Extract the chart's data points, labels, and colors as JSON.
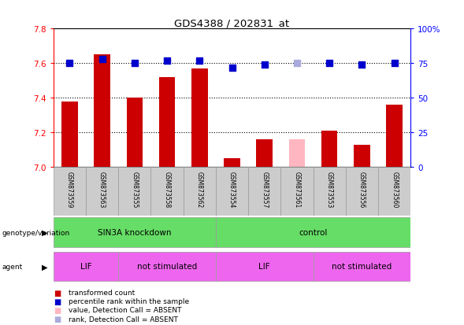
{
  "title": "GDS4388 / 202831_at",
  "samples": [
    "GSM873559",
    "GSM873563",
    "GSM873555",
    "GSM873558",
    "GSM873562",
    "GSM873554",
    "GSM873557",
    "GSM873561",
    "GSM873553",
    "GSM873556",
    "GSM873560"
  ],
  "red_values": [
    7.38,
    7.65,
    7.4,
    7.52,
    7.57,
    7.05,
    7.16,
    7.16,
    7.21,
    7.13,
    7.36
  ],
  "blue_values": [
    75,
    78,
    75,
    77,
    77,
    72,
    74,
    75,
    75,
    74,
    75
  ],
  "absent_red": [
    false,
    false,
    false,
    false,
    false,
    false,
    false,
    true,
    false,
    false,
    false
  ],
  "absent_blue": [
    false,
    false,
    false,
    false,
    false,
    false,
    false,
    true,
    false,
    false,
    false
  ],
  "ylim_left": [
    7.0,
    7.8
  ],
  "ylim_right": [
    0,
    100
  ],
  "yticks_left": [
    7.0,
    7.2,
    7.4,
    7.6,
    7.8
  ],
  "yticks_right": [
    0,
    25,
    50,
    75,
    100
  ],
  "ytick_labels_right": [
    "0",
    "25",
    "50",
    "75",
    "100%"
  ],
  "bar_color_red": "#CC0000",
  "bar_color_absent_red": "#FFB6C1",
  "dot_color_blue": "#0000CC",
  "dot_color_absent_blue": "#AAAADD",
  "bar_width": 0.5,
  "dot_size": 30,
  "group_color": "#66DD66",
  "agent_color": "#EE66EE",
  "label_box_color": "#CCCCCC",
  "group_bounds": [
    [
      0,
      5,
      "SIN3A knockdown"
    ],
    [
      5,
      11,
      "control"
    ]
  ],
  "agent_bounds": [
    [
      0,
      2,
      "LIF"
    ],
    [
      2,
      5,
      "not stimulated"
    ],
    [
      5,
      8,
      "LIF"
    ],
    [
      8,
      11,
      "not stimulated"
    ]
  ]
}
